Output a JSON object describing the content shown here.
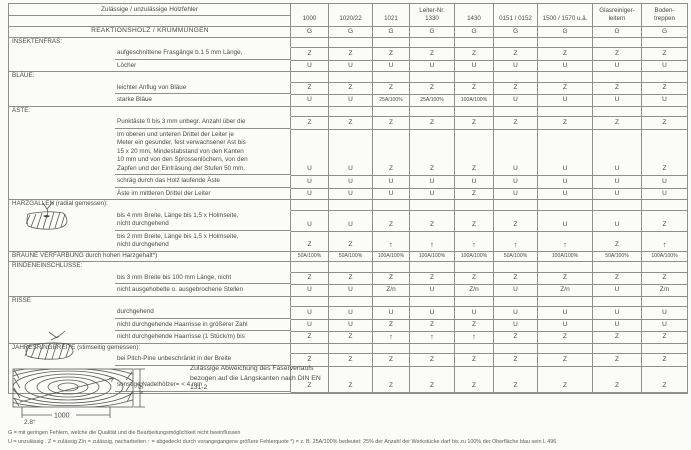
{
  "colors": {
    "paper": "#fbfbf8",
    "ink": "#4a4a48",
    "grid": "#8f8f8c"
  },
  "table": {
    "title": "Zulässige / unzulässige Holzfehler",
    "columns": [
      "1000",
      "1020/22",
      "1021",
      "Leiter-Nr.\n1330",
      "1430",
      "0151 / 0152",
      "1500 / 1570 u.ä.",
      "Glasreiniger-\nleitern",
      "Boden-\ntreppen"
    ],
    "rows": [
      {
        "type": "h2",
        "label": "REAKTIONSHOLZ / KRÜMMUNGEN",
        "sep": true,
        "values": [
          "G",
          "G",
          "G",
          "G",
          "G",
          "G",
          "G",
          "G",
          "G"
        ]
      },
      {
        "type": "section",
        "label": "INSEKTENFRAS:",
        "values": [
          "",
          "",
          "",
          "",
          "",
          "",
          "",
          "",
          ""
        ]
      },
      {
        "type": "sub",
        "label": "aufgeschnittene Frasgänge b.1 5 mm Länge,",
        "values": [
          "Z",
          "Z",
          "Z",
          "Z",
          "Z",
          "Z",
          "Z",
          "Z",
          "Z"
        ]
      },
      {
        "type": "sub",
        "label": "Löcher",
        "sep": true,
        "values": [
          "U",
          "U",
          "U",
          "U",
          "U",
          "U",
          "U",
          "U",
          "U"
        ]
      },
      {
        "type": "section",
        "label": "BLÄUE:",
        "values": [
          "",
          "",
          "",
          "",
          "",
          "",
          "",
          "",
          ""
        ]
      },
      {
        "type": "sub",
        "label": "leichter Anflug von Bläue",
        "values": [
          "Z",
          "Z",
          "Z",
          "Z",
          "Z",
          "Z",
          "Z",
          "Z",
          "Z"
        ]
      },
      {
        "type": "sub",
        "label": "starke Bläue",
        "sep": true,
        "values": [
          "U",
          "U",
          "25A/100%",
          "25A/100%",
          "100A/100%",
          "U",
          "U",
          "U",
          "U"
        ]
      },
      {
        "type": "section",
        "label": "ÄSTE:",
        "values": [
          "",
          "",
          "",
          "",
          "",
          "",
          "",
          "",
          ""
        ]
      },
      {
        "type": "sub",
        "label": "Punktäste 0 bis 3 mm unbegr. Anzahl über die",
        "values": [
          "Z",
          "Z",
          "Z",
          "Z",
          "Z",
          "Z",
          "Z",
          "Z",
          "Z"
        ]
      },
      {
        "type": "sub",
        "label": "Im oberen und unteren Drittel der Leiter je\nMeter ein gesunder, fest verwachsener Ast bis\n15 x 20 mm, Mindestabstand von den Kanten\n10 mm und von den Sprossenlöchern, von den\nZapfen und der Einfräsung der Stufen 50 mm.",
        "values": [
          "U",
          "U",
          "Z",
          "Z",
          "Z",
          "U",
          "U",
          "U",
          "Z"
        ]
      },
      {
        "type": "sub",
        "label": "schräg durch das Holz laufende Äste",
        "values": [
          "U",
          "U",
          "U",
          "U",
          "U",
          "U",
          "U",
          "U",
          "U"
        ]
      },
      {
        "type": "sub",
        "label": "Äste im mittleren Drittel der Leiter",
        "sep": true,
        "values": [
          "U",
          "U",
          "U",
          "U",
          "Z",
          "U",
          "U",
          "U",
          "U"
        ]
      },
      {
        "type": "section",
        "label": "HARZGALLEN (radial gemessen):",
        "values": [
          "",
          "",
          "",
          "",
          "",
          "",
          "",
          "",
          ""
        ]
      },
      {
        "type": "sub",
        "label": "bis 4 mm Breite, Länge bis 1,5 x Holmseite,\nnicht durchgehend",
        "values": [
          "U",
          "U",
          "Z",
          "Z",
          "Z",
          "Z",
          "U",
          "U",
          "Z"
        ]
      },
      {
        "type": "sub",
        "label": "bis 2 mm Breite, Länge bis 1,5 x Holmseite,\nnicht durchgehend",
        "sep": true,
        "values": [
          "Z",
          "Z",
          "↑",
          "↑",
          "↑",
          "↑",
          "↑",
          "Z",
          "↑"
        ]
      },
      {
        "type": "braune",
        "label": "BRAUNE VERFÄRBUNG durch hohen Harzgehalt*)",
        "sep": true,
        "values": [
          "50A/100%",
          "50A/100%",
          "100A/100%",
          "100A/100%",
          "100A/100%",
          "50A/100%",
          "100A/100%",
          "50A/100%",
          "100A/100%"
        ]
      },
      {
        "type": "section",
        "label": "RINDENEINSCHLÜSSE:",
        "values": [
          "",
          "",
          "",
          "",
          "",
          "",
          "",
          "",
          ""
        ]
      },
      {
        "type": "sub",
        "label": "bis 3 mm Breite bis 100 mm Länge, nicht",
        "values": [
          "Z",
          "Z",
          "Z",
          "Z",
          "Z",
          "Z",
          "Z",
          "Z",
          "Z"
        ]
      },
      {
        "type": "sub",
        "label": "nicht ausgehobelte o. ausgebrochene Stellen",
        "sep": true,
        "values": [
          "U",
          "U",
          "Z/n",
          "U",
          "Z/n",
          "U",
          "Z/n",
          "U",
          "Z/n"
        ]
      },
      {
        "type": "section",
        "label": "RISSE",
        "values": [
          "",
          "",
          "",
          "",
          "",
          "",
          "",
          "",
          ""
        ]
      },
      {
        "type": "sub",
        "label": "durchgehend",
        "values": [
          "U",
          "U",
          "U",
          "U",
          "U",
          "U",
          "U",
          "U",
          "U"
        ]
      },
      {
        "type": "sub",
        "label": "nicht durchgehende Haarrisse in größerer Zahl",
        "values": [
          "U",
          "U",
          "Z",
          "Z",
          "Z",
          "U",
          "U",
          "U",
          "U"
        ]
      },
      {
        "type": "sub",
        "label": "nicht durchgehende Haarrisse (1 Stück/m) bis",
        "sep": true,
        "values": [
          "Z",
          "Z",
          "↑",
          "↑",
          "↑",
          "Z",
          "Z",
          "Z",
          "Z"
        ]
      },
      {
        "type": "section",
        "label": "JAHRESRINGBREITE (stimseitig gemessen):",
        "values": [
          "",
          "",
          "",
          "",
          "",
          "",
          "",
          "",
          ""
        ]
      },
      {
        "type": "sub",
        "label": "bei Pitch-Pine unbeschränkt in der Breite",
        "values": [
          "Z",
          "Z",
          "Z",
          "Z",
          "Z",
          "Z",
          "Z",
          "Z",
          "Z"
        ]
      },
      {
        "type": "sub",
        "label": "sonstige Nadelhölzer= < 4 mm",
        "values": [
          "Z",
          "Z",
          "Z",
          "Z",
          "Z",
          "Z",
          "Z",
          "Z",
          "Z"
        ]
      }
    ]
  },
  "note": "Zulässige Abweichung des Faserverlaufs\nbezogen auf die Längskanten nach DIN EN\n131-2",
  "sketch": {
    "angle": "2.8°",
    "length": "1000",
    "height_limit": "≤ 50"
  },
  "footnotes": [
    "G = mit geringen Fehlern, welche die Qualität und die Bearbeitungsmöglichkeit nicht beeinflussen",
    "U = unzulässig . Z = zulässig Z/n = zulässig, nacharbeiten ↑ = abgedeckt durch vorangegangene größere Fehlerquote *) = z. B. 25A/100% bedeutet: 25% der Anzahl der Werkstücke darf bis zu 100% der Oberfläche blau sein L 496"
  ]
}
